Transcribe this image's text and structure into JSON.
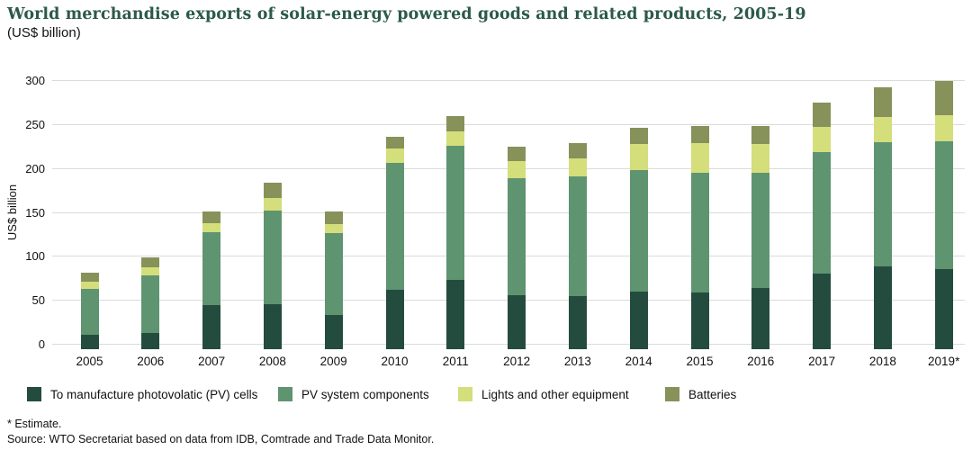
{
  "header": {
    "title": "World merchandise exports of solar-energy powered goods and related products, 2005-19",
    "subtitle": "(US$ billion)"
  },
  "chart_data": {
    "type": "bar",
    "stacked": true,
    "title": "World merchandise exports of solar-energy powered goods and related products, 2005-19 (US$ billion)",
    "xlabel": "",
    "ylabel": "US$ billion",
    "ylim": [
      0,
      300
    ],
    "yticks": [
      0,
      50,
      100,
      150,
      200,
      250,
      300
    ],
    "grid": true,
    "legend_position": "bottom",
    "categories": [
      "2005",
      "2006",
      "2007",
      "2008",
      "2009",
      "2010",
      "2011",
      "2012",
      "2013",
      "2014",
      "2015",
      "2016",
      "2017",
      "2018",
      "2019*"
    ],
    "series": [
      {
        "name": "To manufacture photovolatic (PV) cells",
        "color": "#244c3e",
        "values": [
          11,
          13,
          45,
          46,
          34,
          62,
          74,
          56,
          55,
          60,
          59,
          65,
          81,
          89,
          86
        ]
      },
      {
        "name": "PV system components",
        "color": "#5e9470",
        "values": [
          53,
          66,
          83,
          107,
          93,
          145,
          152,
          133,
          136,
          139,
          137,
          131,
          138,
          141,
          145
        ]
      },
      {
        "name": "Lights and other equipment",
        "color": "#d4de7b",
        "values": [
          8,
          9,
          10,
          14,
          10,
          16,
          17,
          20,
          21,
          29,
          33,
          32,
          29,
          29,
          30
        ]
      },
      {
        "name": "Batteries",
        "color": "#87915a",
        "values": [
          10,
          11,
          14,
          17,
          15,
          14,
          17,
          16,
          17,
          19,
          20,
          21,
          27,
          34,
          39
        ]
      }
    ],
    "totals": [
      82,
      99,
      152,
      184,
      152,
      237,
      260,
      225,
      229,
      247,
      249,
      249,
      275,
      293,
      300
    ]
  },
  "footnotes": {
    "estimate": "* Estimate.",
    "source": "Source: WTO Secretariat based on data from IDB, Comtrade and Trade Data Monitor."
  },
  "colors": {
    "title_text": "#2b594a",
    "gridline": "#dbdbdb",
    "background": "#ffffff"
  }
}
